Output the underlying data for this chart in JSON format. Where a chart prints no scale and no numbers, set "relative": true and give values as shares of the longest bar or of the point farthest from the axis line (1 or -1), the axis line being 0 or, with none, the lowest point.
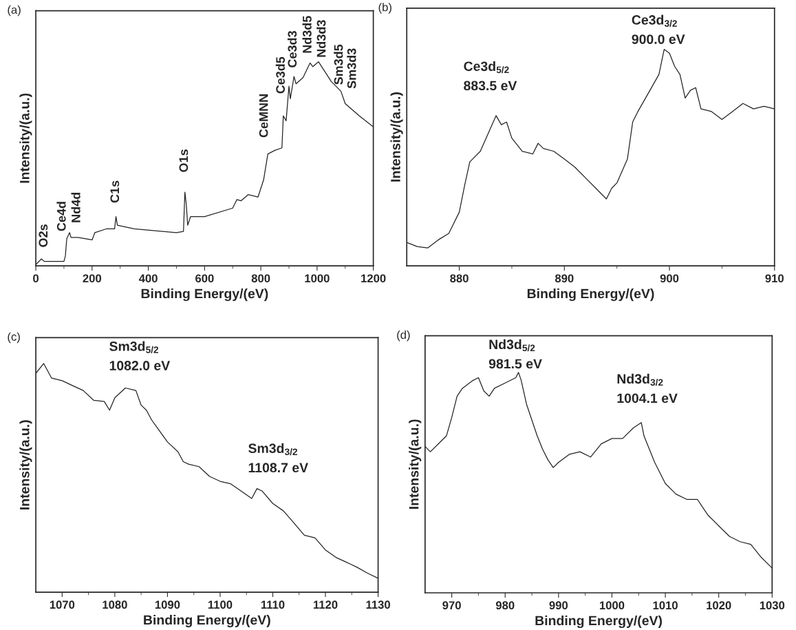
{
  "chart_data": [
    {
      "type": "line",
      "title": "(a)",
      "xlabel": "Binding Energy/(eV)",
      "ylabel": "Intensity/(a.u.)",
      "relative": true,
      "xlim": [
        0,
        1200
      ],
      "xticks": [
        0,
        {
          "value": 100,
          "label": null
        },
        200,
        {
          "value": 300,
          "label": null
        },
        400,
        {
          "value": 500,
          "label": null
        },
        600,
        {
          "value": 700,
          "label": null
        },
        800,
        {
          "value": 900,
          "label": null
        },
        1000,
        {
          "value": 1100,
          "label": null
        },
        1200
      ],
      "x": [
        0,
        20,
        30,
        100,
        105,
        110,
        120,
        125,
        150,
        200,
        210,
        250,
        280,
        285,
        290,
        350,
        500,
        525,
        530,
        535,
        540,
        550,
        600,
        700,
        715,
        730,
        755,
        790,
        810,
        825,
        850,
        875,
        880,
        890,
        900,
        905,
        918,
        925,
        950,
        975,
        985,
        1005,
        1050,
        1085,
        1100,
        1150,
        1200
      ],
      "series": [
        {
          "color": "#222222",
          "values": [
            0.006,
            0.034,
            0.022,
            0.022,
            0.048,
            0.133,
            0.163,
            0.139,
            0.139,
            0.127,
            0.163,
            0.181,
            0.181,
            0.241,
            0.199,
            0.181,
            0.163,
            0.169,
            0.361,
            0.301,
            0.199,
            0.241,
            0.241,
            0.283,
            0.325,
            0.319,
            0.349,
            0.337,
            0.422,
            0.548,
            0.566,
            0.578,
            0.735,
            0.711,
            0.88,
            0.819,
            0.928,
            0.892,
            0.922,
            0.994,
            0.976,
            1.0,
            0.904,
            0.855,
            0.795,
            0.735,
            0.681
          ]
        }
      ],
      "annotations": [
        "O2s",
        "Ce4d",
        "Nd4d",
        "C1s",
        "O1s",
        "CeMNN",
        "Ce3d5",
        "Ce3d3",
        "Nd3d5",
        "Nd3d3",
        "Sm3d5",
        "Sm3d3"
      ]
    },
    {
      "type": "line",
      "title": "(b)",
      "xlabel": "Binding Energy/(eV)",
      "ylabel": "Intensity/(a.u.)",
      "relative": true,
      "xlim": [
        875,
        910
      ],
      "xticks": [
        880,
        {
          "value": 885,
          "label": null
        },
        890,
        {
          "value": 895,
          "label": null
        },
        900,
        {
          "value": 905,
          "label": null
        },
        910
      ],
      "x": [
        875,
        876,
        877,
        878,
        879,
        880,
        880.5,
        881,
        882,
        883,
        883.5,
        884,
        884.5,
        885,
        886,
        887,
        887.5,
        888,
        889,
        890,
        891,
        892,
        893,
        894,
        894.5,
        895,
        896,
        896.5,
        897,
        898,
        899,
        899.5,
        900,
        900.5,
        901,
        901.5,
        902,
        902.5,
        903,
        904,
        905,
        906,
        907,
        908,
        909,
        910
      ],
      "series": [
        {
          "color": "#222222",
          "values": [
            0.108,
            0.089,
            0.083,
            0.12,
            0.15,
            0.248,
            0.37,
            0.48,
            0.529,
            0.639,
            0.694,
            0.652,
            0.664,
            0.59,
            0.529,
            0.517,
            0.566,
            0.542,
            0.529,
            0.493,
            0.456,
            0.407,
            0.358,
            0.309,
            0.358,
            0.383,
            0.493,
            0.664,
            0.713,
            0.798,
            0.884,
            1.0,
            0.982,
            0.921,
            0.884,
            0.775,
            0.811,
            0.823,
            0.725,
            0.713,
            0.676,
            0.713,
            0.75,
            0.725,
            0.737,
            0.725
          ]
        }
      ],
      "annotations": [
        "Ce3d$_{5/2}$\n883.5 eV",
        "Ce3d$_{3/2}$\n900.0 eV"
      ]
    },
    {
      "type": "line",
      "title": "(c)",
      "xlabel": "Binding Energy/(eV)",
      "ylabel": "Intensity/(a.u.)",
      "relative": true,
      "xlim": [
        1065,
        1130
      ],
      "xticks": [
        1070,
        {
          "value": 1075,
          "label": null
        },
        1080,
        {
          "value": 1085,
          "label": null
        },
        1090,
        {
          "value": 1095,
          "label": null
        },
        1100,
        {
          "value": 1105,
          "label": null
        },
        1110,
        {
          "value": 1115,
          "label": null
        },
        1120,
        {
          "value": 1125,
          "label": null
        },
        1130
      ],
      "x": [
        1065,
        1066.5,
        1068,
        1070,
        1072,
        1074,
        1076,
        1078,
        1079,
        1080,
        1082,
        1084,
        1085,
        1086,
        1087,
        1088,
        1090,
        1092,
        1093,
        1094,
        1096,
        1098,
        1100,
        1102,
        1104,
        1106,
        1107,
        1108,
        1110,
        1112,
        1114,
        1116,
        1118,
        1120,
        1122,
        1124,
        1126,
        1128,
        1130
      ],
      "series": [
        {
          "color": "#222222",
          "values": [
            0.957,
            1.0,
            0.936,
            0.925,
            0.903,
            0.882,
            0.839,
            0.834,
            0.796,
            0.85,
            0.893,
            0.882,
            0.818,
            0.796,
            0.753,
            0.721,
            0.657,
            0.614,
            0.571,
            0.56,
            0.549,
            0.506,
            0.485,
            0.474,
            0.442,
            0.41,
            0.453,
            0.442,
            0.388,
            0.356,
            0.303,
            0.249,
            0.238,
            0.185,
            0.152,
            0.131,
            0.109,
            0.083,
            0.061
          ]
        }
      ],
      "annotations": [
        "Sm3d$_{5/2}$\n1082.0 eV",
        "Sm3d$_{3/2}$\n1108.7 eV"
      ]
    },
    {
      "type": "line",
      "title": "(d)",
      "xlabel": "Binding Energy/(eV)",
      "ylabel": "Intensity/(a.u.)",
      "relative": true,
      "xlim": [
        965,
        1030
      ],
      "xticks": [
        970,
        {
          "value": 975,
          "label": null
        },
        980,
        {
          "value": 985,
          "label": null
        },
        990,
        {
          "value": 995,
          "label": null
        },
        1000,
        {
          "value": 1005,
          "label": null
        },
        1010,
        {
          "value": 1015,
          "label": null
        },
        1020,
        {
          "value": 1025,
          "label": null
        },
        1030
      ],
      "x": [
        965,
        966,
        968,
        969,
        970,
        971,
        972,
        974,
        975,
        976,
        977,
        978,
        980,
        982,
        982.5,
        983,
        984,
        985,
        986,
        987,
        988,
        989,
        990,
        992,
        994,
        996,
        998,
        1000,
        1002,
        1004,
        1005.5,
        1006,
        1007,
        1008,
        1010,
        1012,
        1014,
        1016,
        1018,
        1020,
        1022,
        1024,
        1026,
        1028,
        1030
      ],
      "series": [
        {
          "color": "#222222",
          "values": [
            0.664,
            0.64,
            0.688,
            0.712,
            0.796,
            0.892,
            0.928,
            0.964,
            0.976,
            0.916,
            0.892,
            0.928,
            0.952,
            0.976,
            1.0,
            0.964,
            0.856,
            0.784,
            0.712,
            0.652,
            0.604,
            0.568,
            0.592,
            0.628,
            0.64,
            0.616,
            0.676,
            0.7,
            0.7,
            0.748,
            0.772,
            0.712,
            0.652,
            0.592,
            0.496,
            0.448,
            0.424,
            0.424,
            0.352,
            0.304,
            0.256,
            0.232,
            0.22,
            0.16,
            0.112
          ]
        }
      ],
      "annotations": [
        "Nd3d$_{5/2}$\n981.5 eV",
        "Nd3d$_{3/2}$\n1004.1 eV"
      ]
    }
  ]
}
